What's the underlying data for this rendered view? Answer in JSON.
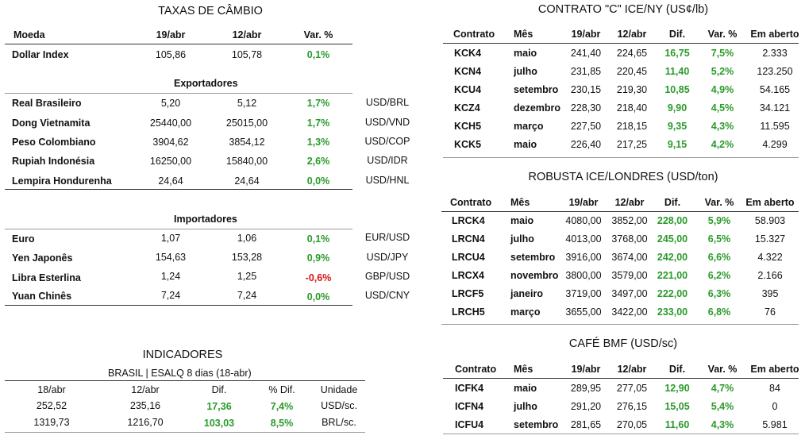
{
  "fx": {
    "title": "TAXAS DE CÂMBIO",
    "headers": [
      "Moeda",
      "19/abr",
      "12/abr",
      "Var. %"
    ],
    "dollar": {
      "name": "Dollar Index",
      "a": "105,86",
      "b": "105,78",
      "var": "0,1%"
    },
    "exporters_title": "Exportadores",
    "exporters": [
      {
        "name": "Real Brasileiro",
        "a": "5,20",
        "b": "5,12",
        "var": "1,7%",
        "pair": "USD/BRL"
      },
      {
        "name": "Dong Vietnamita",
        "a": "25440,00",
        "b": "25015,00",
        "var": "1,7%",
        "pair": "USD/VND"
      },
      {
        "name": "Peso Colombiano",
        "a": "3904,62",
        "b": "3854,12",
        "var": "1,3%",
        "pair": "USD/COP"
      },
      {
        "name": "Rupiah Indonésia",
        "a": "16250,00",
        "b": "15840,00",
        "var": "2,6%",
        "pair": "USD/IDR"
      },
      {
        "name": "Lempira Hondurenha",
        "a": "24,64",
        "b": "24,64",
        "var": "0,0%",
        "pair": "USD/HNL"
      }
    ],
    "importers_title": "Importadores",
    "importers": [
      {
        "name": "Euro",
        "a": "1,07",
        "b": "1,06",
        "var": "0,1%",
        "pair": "EUR/USD"
      },
      {
        "name": "Yen Japonês",
        "a": "154,63",
        "b": "153,28",
        "var": "0,9%",
        "pair": "USD/JPY"
      },
      {
        "name": "Libra Esterlina",
        "a": "1,24",
        "b": "1,25",
        "var": "-0,6%",
        "pair": "GBP/USD"
      },
      {
        "name": "Yuan Chinês",
        "a": "7,24",
        "b": "7,24",
        "var": "0,0%",
        "pair": "USD/CNY"
      }
    ]
  },
  "ind": {
    "title": "INDICADORES",
    "subtitle": "BRASIL | ESALQ 8 dias (18-abr)",
    "headers": [
      "18/abr",
      "12/abr",
      "Dif.",
      "% Dif.",
      "Unidade"
    ],
    "rows": [
      {
        "a": "252,52",
        "b": "235,16",
        "dif": "17,36",
        "pct": "7,4%",
        "unit": "USD/sc."
      },
      {
        "a": "1319,73",
        "b": "1216,70",
        "dif": "103,03",
        "pct": "8,5%",
        "unit": "BRL/sc."
      }
    ]
  },
  "cny": {
    "title": "CONTRATO \"C\" ICE/NY (US¢/lb)",
    "headers": [
      "Contrato",
      "Mês",
      "19/abr",
      "12/abr",
      "Dif.",
      "Var. %",
      "Em aberto"
    ],
    "rows": [
      {
        "c": "KCK4",
        "m": "maio",
        "a": "241,40",
        "b": "224,65",
        "d": "16,75",
        "v": "7,5%",
        "o": "2.333"
      },
      {
        "c": "KCN4",
        "m": "julho",
        "a": "231,85",
        "b": "220,45",
        "d": "11,40",
        "v": "5,2%",
        "o": "123.250"
      },
      {
        "c": "KCU4",
        "m": "setembro",
        "a": "230,15",
        "b": "219,30",
        "d": "10,85",
        "v": "4,9%",
        "o": "54.165"
      },
      {
        "c": "KCZ4",
        "m": "dezembro",
        "a": "228,30",
        "b": "218,40",
        "d": "9,90",
        "v": "4,5%",
        "o": "34.121"
      },
      {
        "c": "KCH5",
        "m": "março",
        "a": "227,50",
        "b": "218,15",
        "d": "9,35",
        "v": "4,3%",
        "o": "11.595"
      },
      {
        "c": "KCK5",
        "m": "maio",
        "a": "226,40",
        "b": "217,25",
        "d": "9,15",
        "v": "4,2%",
        "o": "4.299"
      }
    ]
  },
  "rob": {
    "title": "ROBUSTA ICE/LONDRES (USD/ton)",
    "headers": [
      "Contrato",
      "Mês",
      "19/abr",
      "12/abr",
      "Dif.",
      "Var. %",
      "Em aberto"
    ],
    "rows": [
      {
        "c": "LRCK4",
        "m": "maio",
        "a": "4080,00",
        "b": "3852,00",
        "d": "228,00",
        "v": "5,9%",
        "o": "58.903"
      },
      {
        "c": "LRCN4",
        "m": "julho",
        "a": "4013,00",
        "b": "3768,00",
        "d": "245,00",
        "v": "6,5%",
        "o": "15.327"
      },
      {
        "c": "LRCU4",
        "m": "setembro",
        "a": "3916,00",
        "b": "3674,00",
        "d": "242,00",
        "v": "6,6%",
        "o": "4.322"
      },
      {
        "c": "LRCX4",
        "m": "novembro",
        "a": "3800,00",
        "b": "3579,00",
        "d": "221,00",
        "v": "6,2%",
        "o": "2.166"
      },
      {
        "c": "LRCF5",
        "m": "janeiro",
        "a": "3719,00",
        "b": "3497,00",
        "d": "222,00",
        "v": "6,3%",
        "o": "395"
      },
      {
        "c": "LRCH5",
        "m": "março",
        "a": "3655,00",
        "b": "3422,00",
        "d": "233,00",
        "v": "6,8%",
        "o": "76"
      }
    ]
  },
  "bmf": {
    "title": "CAFÉ BMF (USD/sc)",
    "headers": [
      "Contrato",
      "Mês",
      "19/abr",
      "12/abr",
      "Dif.",
      "Var. %",
      "Em aberto"
    ],
    "rows": [
      {
        "c": "ICFK4",
        "m": "maio",
        "a": "289,95",
        "b": "277,05",
        "d": "12,90",
        "v": "4,7%",
        "o": "84"
      },
      {
        "c": "ICFN4",
        "m": "julho",
        "a": "291,20",
        "b": "276,15",
        "d": "15,05",
        "v": "5,4%",
        "o": "0"
      },
      {
        "c": "ICFU4",
        "m": "setembro",
        "a": "281,65",
        "b": "270,05",
        "d": "11,60",
        "v": "4,3%",
        "o": "5.981"
      }
    ]
  },
  "colors": {
    "positive": "#2a9a2a",
    "negative": "#e01010"
  }
}
